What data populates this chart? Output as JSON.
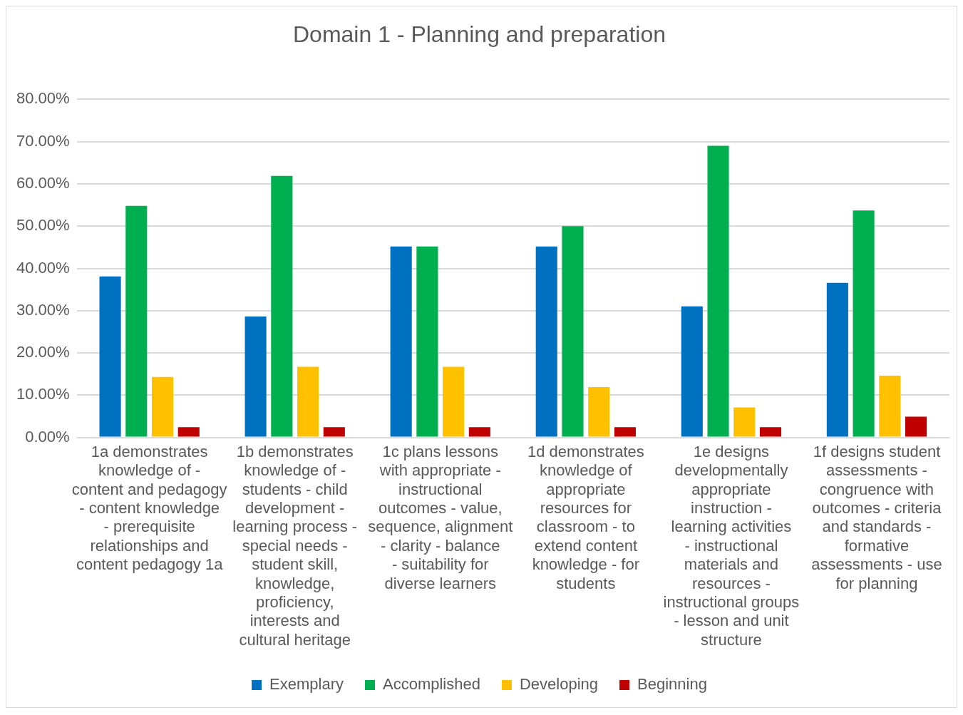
{
  "chart_data": {
    "type": "bar",
    "title": "Domain 1 - Planning and preparation",
    "categories": [
      "1a demonstrates knowledge of - content and pedagogy - content knowledge - prerequisite relationships and content pedagogy 1a",
      "1b demonstrates knowledge of - students - child development - learning process - special needs - student skill, knowledge, proficiency, interests and cultural heritage",
      "1c plans lessons with appropriate - instructional outcomes - value, sequence, alignment - clarity - balance - suitability for diverse learners",
      "1d demonstrates knowledge of appropriate resources for classroom - to extend content knowledge - for students",
      "1e designs developmentally appropriate instruction - learning activities - instructional materials and resources - instructional groups - lesson and unit structure",
      "1f designs student assessments - congruence with outcomes - criteria and standards - formative assessments - use for planning"
    ],
    "series": [
      {
        "name": "Exemplary",
        "color": "#0070c0",
        "values": [
          38.1,
          28.6,
          45.2,
          45.2,
          31.0,
          36.6
        ]
      },
      {
        "name": "Accomplished",
        "color": "#00b050",
        "values": [
          54.8,
          61.9,
          45.2,
          50.0,
          69.0,
          53.7
        ]
      },
      {
        "name": "Developing",
        "color": "#ffc000",
        "values": [
          14.3,
          16.7,
          16.7,
          11.9,
          7.1,
          14.6
        ]
      },
      {
        "name": "Beginning",
        "color": "#c00000",
        "values": [
          2.4,
          2.4,
          2.4,
          2.4,
          2.4,
          4.9
        ]
      }
    ],
    "ylim": [
      0,
      80
    ],
    "yticks": [
      {
        "value": 0,
        "label": "0.00%"
      },
      {
        "value": 10,
        "label": "10.00%"
      },
      {
        "value": 20,
        "label": "20.00%"
      },
      {
        "value": 30,
        "label": "30.00%"
      },
      {
        "value": 40,
        "label": "40.00%"
      },
      {
        "value": 50,
        "label": "50.00%"
      },
      {
        "value": 60,
        "label": "60.00%"
      },
      {
        "value": 70,
        "label": "70.00%"
      },
      {
        "value": 80,
        "label": "80.00%"
      }
    ],
    "grid": "y",
    "legend": "bottom"
  }
}
